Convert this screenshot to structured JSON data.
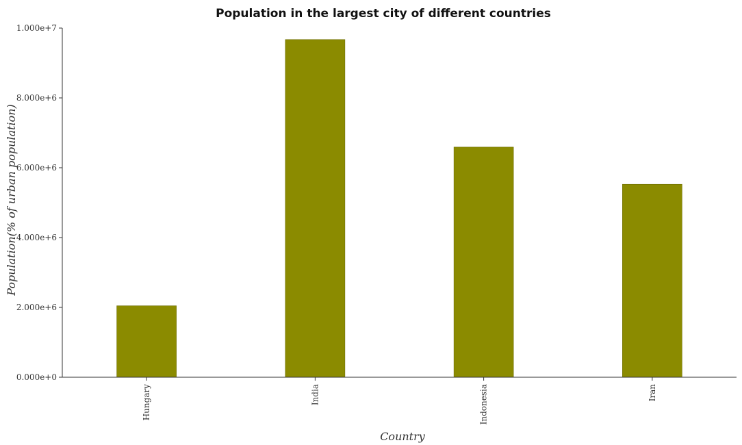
{
  "chart_data": {
    "type": "bar",
    "title": "Population in the largest city of different countries",
    "xlabel": "Country",
    "ylabel": "Population(% of urban population)",
    "categories": [
      "Hungary",
      "India",
      "Indonesia",
      "Iran"
    ],
    "values": [
      2046000,
      9671000,
      6591000,
      5525000
    ],
    "ylim": [
      0,
      10000000
    ],
    "yticks": [
      0,
      2000000,
      4000000,
      6000000,
      8000000,
      10000000
    ],
    "ytick_labels": [
      "0.000e+0",
      "2.000e+6",
      "4.000e+6",
      "6.000e+6",
      "8.000e+6",
      "1.000e+7"
    ],
    "grid": false,
    "legend": "none",
    "colors": {
      "bar_fill": "#8b8b00",
      "bar_stroke": "#6b6b00",
      "axis": "#333333"
    }
  }
}
